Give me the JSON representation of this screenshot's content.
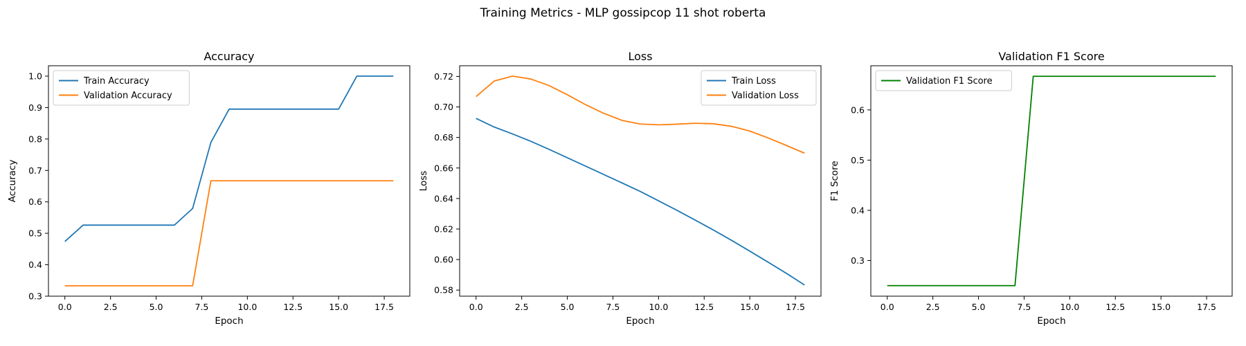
{
  "figure": {
    "suptitle": "Training Metrics - MLP gossipcop 11 shot roberta"
  },
  "chart_data": [
    {
      "type": "line",
      "title": "Accuracy",
      "xlabel": "Epoch",
      "ylabel": "Accuracy",
      "xlim": [
        -0.9,
        18.9
      ],
      "ylim": [
        0.3,
        1.033
      ],
      "xticks": [
        0.0,
        2.5,
        5.0,
        7.5,
        10.0,
        12.5,
        15.0,
        17.5
      ],
      "xtick_labels": [
        "0.0",
        "2.5",
        "5.0",
        "7.5",
        "10.0",
        "12.5",
        "15.0",
        "17.5"
      ],
      "yticks": [
        0.3,
        0.4,
        0.5,
        0.6,
        0.7,
        0.8,
        0.9,
        1.0
      ],
      "ytick_labels": [
        "0.3",
        "0.4",
        "0.5",
        "0.6",
        "0.7",
        "0.8",
        "0.9",
        "1.0"
      ],
      "legend_position": "upper-left",
      "x": [
        0,
        1,
        2,
        3,
        4,
        5,
        6,
        7,
        8,
        9,
        10,
        11,
        12,
        13,
        14,
        15,
        16,
        17,
        18
      ],
      "series": [
        {
          "name": "Train Accuracy",
          "color": "#1f77b4",
          "values": [
            0.474,
            0.526,
            0.526,
            0.526,
            0.526,
            0.526,
            0.526,
            0.579,
            0.789,
            0.895,
            0.895,
            0.895,
            0.895,
            0.895,
            0.895,
            0.895,
            1.0,
            1.0,
            1.0
          ]
        },
        {
          "name": "Validation Accuracy",
          "color": "#ff7f0e",
          "values": [
            0.333,
            0.333,
            0.333,
            0.333,
            0.333,
            0.333,
            0.333,
            0.333,
            0.667,
            0.667,
            0.667,
            0.667,
            0.667,
            0.667,
            0.667,
            0.667,
            0.667,
            0.667,
            0.667
          ]
        }
      ]
    },
    {
      "type": "line",
      "title": "Loss",
      "xlabel": "Epoch",
      "ylabel": "Loss",
      "xlim": [
        -0.9,
        18.9
      ],
      "ylim": [
        0.576,
        0.727
      ],
      "xticks": [
        0.0,
        2.5,
        5.0,
        7.5,
        10.0,
        12.5,
        15.0,
        17.5
      ],
      "xtick_labels": [
        "0.0",
        "2.5",
        "5.0",
        "7.5",
        "10.0",
        "12.5",
        "15.0",
        "17.5"
      ],
      "yticks": [
        0.58,
        0.6,
        0.62,
        0.64,
        0.66,
        0.68,
        0.7,
        0.72
      ],
      "ytick_labels": [
        "0.58",
        "0.60",
        "0.62",
        "0.64",
        "0.66",
        "0.68",
        "0.70",
        "0.72"
      ],
      "legend_position": "upper-right",
      "x": [
        0,
        1,
        2,
        3,
        4,
        5,
        6,
        7,
        8,
        9,
        10,
        11,
        12,
        13,
        14,
        15,
        16,
        17,
        18
      ],
      "series": [
        {
          "name": "Train Loss",
          "color": "#1f77b4",
          "values": [
            0.6925,
            0.6868,
            0.6823,
            0.6775,
            0.6722,
            0.6667,
            0.6612,
            0.6557,
            0.6502,
            0.6446,
            0.6385,
            0.6323,
            0.6259,
            0.6194,
            0.6126,
            0.6055,
            0.5983,
            0.591,
            0.5833
          ]
        },
        {
          "name": "Validation Loss",
          "color": "#ff7f0e",
          "values": [
            0.7068,
            0.717,
            0.7202,
            0.7183,
            0.714,
            0.708,
            0.7015,
            0.6958,
            0.6912,
            0.6888,
            0.6883,
            0.6887,
            0.6893,
            0.689,
            0.6873,
            0.6842,
            0.6797,
            0.6748,
            0.6697
          ]
        }
      ]
    },
    {
      "type": "line",
      "title": "Validation F1 Score",
      "xlabel": "Epoch",
      "ylabel": "F1 Score",
      "xlim": [
        -0.9,
        18.9
      ],
      "ylim": [
        0.229,
        0.688
      ],
      "xticks": [
        0.0,
        2.5,
        5.0,
        7.5,
        10.0,
        12.5,
        15.0,
        17.5
      ],
      "xtick_labels": [
        "0.0",
        "2.5",
        "5.0",
        "7.5",
        "10.0",
        "12.5",
        "15.0",
        "17.5"
      ],
      "yticks": [
        0.3,
        0.4,
        0.5,
        0.6
      ],
      "ytick_labels": [
        "0.3",
        "0.4",
        "0.5",
        "0.6"
      ],
      "legend_position": "upper-left",
      "x": [
        0,
        1,
        2,
        3,
        4,
        5,
        6,
        7,
        8,
        9,
        10,
        11,
        12,
        13,
        14,
        15,
        16,
        17,
        18
      ],
      "series": [
        {
          "name": "Validation F1 Score",
          "color": "#008000",
          "values": [
            0.25,
            0.25,
            0.25,
            0.25,
            0.25,
            0.25,
            0.25,
            0.25,
            0.667,
            0.667,
            0.667,
            0.667,
            0.667,
            0.667,
            0.667,
            0.667,
            0.667,
            0.667,
            0.667
          ]
        }
      ]
    }
  ]
}
